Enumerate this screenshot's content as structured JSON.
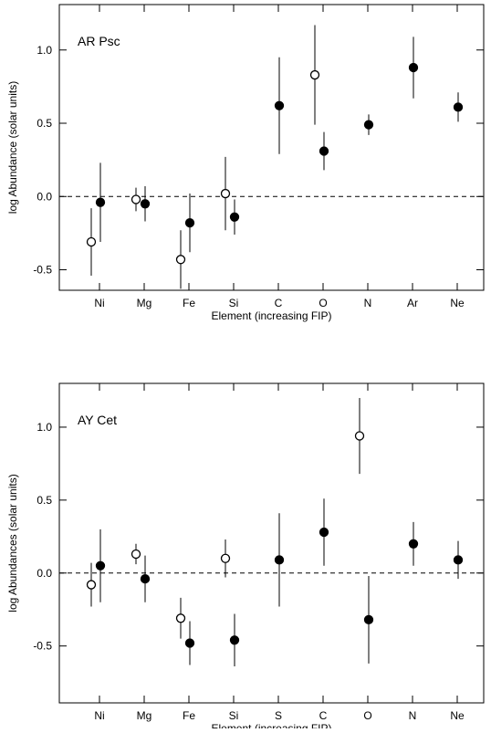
{
  "chart_data": [
    {
      "type": "scatter",
      "annotation": "AR Psc",
      "xlabel": "Element (increasing FIP)",
      "ylabel": "log Abundance (solar units)",
      "categories": [
        "Ni",
        "Mg",
        "Fe",
        "Si",
        "C",
        "O",
        "N",
        "Ar",
        "Ne"
      ],
      "ylim": [
        -0.64,
        1.31
      ],
      "yticks": [
        {
          "value": -0.5,
          "label": "-0.5"
        },
        {
          "value": 0,
          "label": "0.0"
        },
        {
          "value": 0.5,
          "label": "0.5"
        },
        {
          "value": 1,
          "label": "1.0"
        }
      ],
      "hline": 0,
      "series": [
        {
          "marker": "open",
          "color": "#000000",
          "values": [
            -0.31,
            -0.02,
            -0.43,
            0.02,
            null,
            0.83,
            null,
            null,
            null
          ],
          "errors": [
            0.23,
            0.08,
            0.2,
            0.25,
            null,
            0.34,
            null,
            null,
            null
          ]
        },
        {
          "marker": "filled",
          "color": "#000000",
          "values": [
            -0.04,
            -0.05,
            -0.18,
            -0.14,
            0.62,
            0.31,
            0.49,
            0.88,
            0.61
          ],
          "errors": [
            0.27,
            0.12,
            0.2,
            0.12,
            0.33,
            0.13,
            0.07,
            0.21,
            0.1
          ]
        }
      ]
    },
    {
      "type": "scatter",
      "annotation": "AY Cet",
      "xlabel": "Element (increasing FIP)",
      "ylabel": "log Abundances (solar units)",
      "categories": [
        "Ni",
        "Mg",
        "Fe",
        "Si",
        "S",
        "C",
        "O",
        "N",
        "Ne"
      ],
      "ylim": [
        -0.89,
        1.3
      ],
      "yticks": [
        {
          "value": -0.5,
          "label": "-0.5"
        },
        {
          "value": 0,
          "label": "0.0"
        },
        {
          "value": 0.5,
          "label": "0.5"
        },
        {
          "value": 1,
          "label": "1.0"
        }
      ],
      "hline": 0,
      "series": [
        {
          "marker": "open",
          "color": "#000000",
          "values": [
            -0.08,
            0.13,
            -0.31,
            0.1,
            null,
            null,
            0.94,
            null,
            null
          ],
          "errors": [
            0.15,
            0.07,
            0.14,
            0.13,
            null,
            null,
            0.26,
            null,
            null
          ]
        },
        {
          "marker": "filled",
          "color": "#000000",
          "values": [
            0.05,
            -0.04,
            -0.48,
            -0.46,
            0.09,
            0.28,
            -0.32,
            0.2,
            0.09
          ],
          "errors": [
            0.25,
            0.16,
            0.15,
            0.18,
            0.32,
            0.23,
            0.3,
            0.15,
            0.13
          ]
        }
      ]
    }
  ]
}
